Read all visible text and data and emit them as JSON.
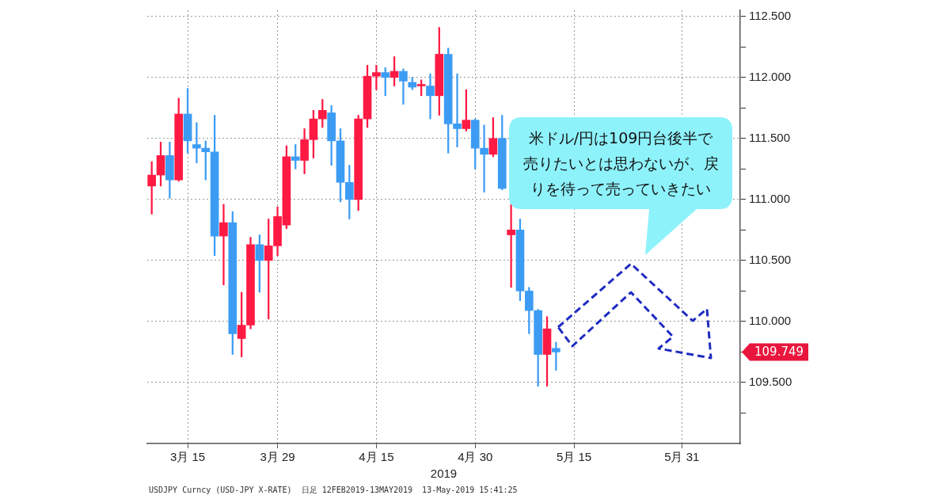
{
  "chart_data": {
    "type": "candlestick",
    "xlabel": "2019",
    "categories": [
      null,
      null,
      null,
      null,
      "3月 15",
      null,
      null,
      null,
      null,
      null,
      null,
      null,
      null,
      null,
      "3月 29",
      null,
      null,
      null,
      null,
      null,
      null,
      null,
      null,
      null,
      null,
      "4月 15",
      null,
      null,
      null,
      null,
      null,
      null,
      null,
      null,
      null,
      null,
      "4月 30",
      null,
      null,
      null,
      null,
      null,
      null,
      null,
      null,
      null,
      null,
      "5月 15",
      null,
      null,
      null,
      null,
      null,
      null,
      null,
      null,
      null,
      null,
      null,
      "5月 31",
      null,
      null,
      null,
      null,
      null,
      null
    ],
    "ohlc": [
      [
        111.11,
        111.31,
        110.88,
        111.2
      ],
      [
        111.2,
        111.47,
        111.11,
        111.36
      ],
      [
        111.36,
        111.47,
        111.01,
        111.16
      ],
      [
        111.16,
        111.83,
        111.15,
        111.7
      ],
      [
        111.7,
        111.91,
        111.38,
        111.48
      ],
      [
        111.45,
        111.63,
        111.3,
        111.42
      ],
      [
        111.42,
        111.48,
        111.16,
        111.39
      ],
      [
        111.39,
        111.69,
        110.54,
        110.7
      ],
      [
        110.7,
        110.96,
        110.3,
        110.81
      ],
      [
        110.81,
        110.9,
        109.73,
        109.9
      ],
      [
        109.86,
        110.24,
        109.71,
        109.97
      ],
      [
        109.97,
        110.69,
        109.94,
        110.63
      ],
      [
        110.63,
        110.71,
        110.24,
        110.5
      ],
      [
        110.5,
        110.84,
        110.02,
        110.62
      ],
      [
        110.62,
        110.94,
        110.54,
        110.86
      ],
      [
        110.79,
        111.44,
        110.76,
        111.35
      ],
      [
        111.35,
        111.45,
        111.25,
        111.32
      ],
      [
        111.32,
        111.58,
        111.21,
        111.49
      ],
      [
        111.49,
        111.73,
        111.34,
        111.66
      ],
      [
        111.66,
        111.82,
        111.59,
        111.73
      ],
      [
        111.71,
        111.77,
        111.28,
        111.48
      ],
      [
        111.48,
        111.58,
        110.98,
        111.14
      ],
      [
        111.14,
        111.28,
        110.84,
        111.0
      ],
      [
        111.0,
        111.69,
        110.91,
        111.66
      ],
      [
        111.66,
        112.1,
        111.59,
        112.01
      ],
      [
        112.01,
        112.1,
        111.9,
        112.04
      ],
      [
        112.04,
        112.08,
        111.85,
        112.0
      ],
      [
        112.0,
        112.17,
        111.93,
        112.05
      ],
      [
        112.05,
        112.07,
        111.78,
        111.97
      ],
      [
        111.96,
        112.0,
        111.9,
        111.92
      ],
      [
        111.93,
        111.98,
        111.85,
        111.94
      ],
      [
        111.93,
        112.03,
        111.66,
        111.85
      ],
      [
        111.85,
        112.41,
        111.69,
        112.19
      ],
      [
        112.19,
        112.24,
        111.38,
        111.62
      ],
      [
        111.62,
        112.03,
        111.43,
        111.58
      ],
      [
        111.58,
        111.9,
        111.56,
        111.65
      ],
      [
        111.65,
        111.66,
        111.25,
        111.42
      ],
      [
        111.42,
        111.61,
        111.06,
        111.37
      ],
      [
        111.37,
        111.67,
        111.35,
        111.5
      ],
      [
        111.5,
        111.69,
        111.08,
        111.09
      ],
      [
        110.71,
        110.96,
        110.28,
        110.75
      ],
      [
        110.75,
        110.84,
        110.17,
        110.25
      ],
      [
        110.25,
        110.28,
        109.9,
        110.09
      ],
      [
        110.09,
        110.1,
        109.47,
        109.73
      ],
      [
        109.73,
        110.04,
        109.47,
        109.94
      ],
      [
        109.78,
        109.83,
        109.6,
        109.75
      ],
      null,
      null,
      null,
      null,
      null,
      null,
      null,
      null,
      null,
      null,
      null,
      null,
      null,
      null,
      null,
      null,
      null,
      null,
      null,
      null
    ],
    "colors": [
      "#ff1a44",
      "#ff1a44",
      "#3c9cf4",
      "#ff1a44",
      "#3c9cf4",
      "#3c9cf4",
      "#3c9cf4",
      "#3c9cf4",
      "#ff1a44",
      "#3c9cf4",
      "#ff1a44",
      "#ff1a44",
      "#3c9cf4",
      "#ff1a44",
      "#ff1a44",
      "#ff1a44",
      "#3c9cf4",
      "#ff1a44",
      "#ff1a44",
      "#ff1a44",
      "#3c9cf4",
      "#3c9cf4",
      "#3c9cf4",
      "#ff1a44",
      "#ff1a44",
      "#ff1a44",
      "#3c9cf4",
      "#ff1a44",
      "#3c9cf4",
      "#3c9cf4",
      "#ff1a44",
      "#3c9cf4",
      "#ff1a44",
      "#3c9cf4",
      "#3c9cf4",
      "#ff1a44",
      "#3c9cf4",
      "#3c9cf4",
      "#ff1a44",
      "#3c9cf4",
      "#ff1a44",
      "#3c9cf4",
      "#3c9cf4",
      "#3c9cf4",
      "#ff1a44",
      "#3c9cf4",
      null,
      null,
      null,
      null,
      null,
      null,
      null,
      null,
      null,
      null,
      null,
      null,
      null,
      null,
      null,
      null,
      null,
      null,
      null,
      null
    ],
    "ylim": [
      109.0,
      112.55
    ],
    "yticks": [
      {
        "value": 109.25,
        "label": null
      },
      {
        "value": 109.5,
        "label": "109.500"
      },
      {
        "value": 109.75,
        "label": null
      },
      {
        "value": 110.0,
        "label": "110.000"
      },
      {
        "value": 110.25,
        "label": null
      },
      {
        "value": 110.5,
        "label": "110.500"
      },
      {
        "value": 110.75,
        "label": null
      },
      {
        "value": 111.0,
        "label": "111.000"
      },
      {
        "value": 111.25,
        "label": null
      },
      {
        "value": 111.5,
        "label": "111.500"
      },
      {
        "value": 111.75,
        "label": null
      },
      {
        "value": 112.0,
        "label": "112.000"
      },
      {
        "value": 112.25,
        "label": null
      },
      {
        "value": 112.5,
        "label": "112.500"
      }
    ],
    "grid": true,
    "legend": false,
    "annotations": [
      "109.749",
      "米ドル/円は109円台後半で売りたいとは思わないが、戻りを待って売っていきたい",
      "USDJPY Curncy (USD-JPY X-RATE)  日足 12FEB2019-13MAY2019  13-May-2019 15:41:25"
    ]
  }
}
